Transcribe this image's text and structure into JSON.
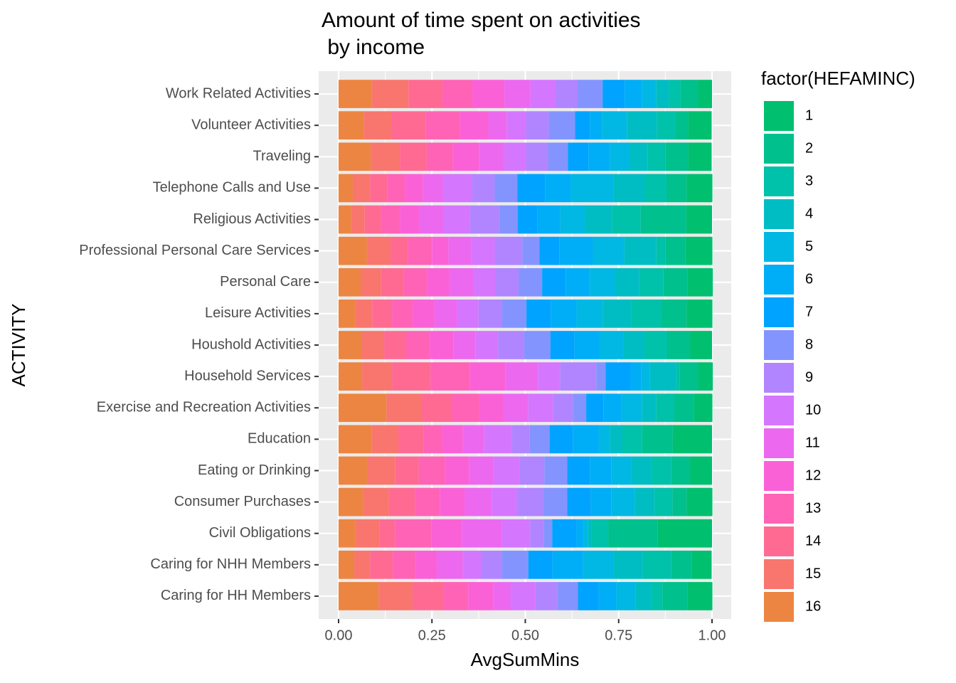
{
  "chart_data": {
    "type": "bar",
    "orientation": "horizontal",
    "stacked": "percent",
    "title": [
      "Amount of time spent on activities",
      " by income"
    ],
    "x_label": "AvgSumMins",
    "y_label": "ACTIVITY",
    "legend_title": "factor(HEFAMINC)",
    "categories": [
      "Work Related Activities",
      "Volunteer Activities",
      "Traveling",
      "Telephone Calls and Use",
      "Religious Activities",
      "Professional Personal Care Services",
      "Personal Care",
      "Leisure Activities",
      "Houshold Activities",
      "Household Services",
      "Exercise and Recreation Activities",
      "Education",
      "Eating or Drinking",
      "Consumer Purchases",
      "Civil Obligations",
      "Caring for NHH Members",
      "Caring for HH Members"
    ],
    "xlim": [
      0,
      1
    ],
    "xticks": [
      {
        "value": 0,
        "label": "0.00"
      },
      {
        "value": 0.25,
        "label": "0.25"
      },
      {
        "value": 0.5,
        "label": "0.50"
      },
      {
        "value": 0.75,
        "label": "0.75"
      },
      {
        "value": 1,
        "label": "1.00"
      }
    ],
    "grid": true,
    "series": [
      {
        "name": "1",
        "color": "#00BF6F",
        "values": [
          0.038,
          0.063,
          0.063,
          0.069,
          0.069,
          0.072,
          0.067,
          0.069,
          0.059,
          0.04,
          0.05,
          0.105,
          0.059,
          0.069,
          0.145,
          0.053,
          0.067
        ]
      },
      {
        "name": "2",
        "color": "#00C08D",
        "values": [
          0.046,
          0.034,
          0.061,
          0.053,
          0.122,
          0.053,
          0.065,
          0.069,
          0.061,
          0.048,
          0.053,
          0.082,
          0.05,
          0.038,
          0.133,
          0.055,
          0.067
        ]
      },
      {
        "name": "3",
        "color": "#00C1AA",
        "values": [
          0.032,
          0.05,
          0.048,
          0.059,
          0.076,
          0.025,
          0.065,
          0.08,
          0.061,
          0.01,
          0.048,
          0.053,
          0.053,
          0.048,
          0.044,
          0.076,
          0.03
        ]
      },
      {
        "name": "4",
        "color": "#00BDC4",
        "values": [
          0.034,
          0.08,
          0.048,
          0.084,
          0.074,
          0.086,
          0.065,
          0.076,
          0.057,
          0.07,
          0.038,
          0.034,
          0.055,
          0.053,
          0.011,
          0.078,
          0.042
        ]
      },
      {
        "name": "5",
        "color": "#00B8E3",
        "values": [
          0.038,
          0.067,
          0.053,
          0.114,
          0.065,
          0.084,
          0.067,
          0.07,
          0.063,
          0.023,
          0.055,
          0.029,
          0.053,
          0.063,
          0.011,
          0.082,
          0.051
        ]
      },
      {
        "name": "6",
        "color": "#00AEF7",
        "values": [
          0.046,
          0.032,
          0.057,
          0.069,
          0.061,
          0.09,
          0.065,
          0.069,
          0.067,
          0.029,
          0.048,
          0.069,
          0.057,
          0.055,
          0.019,
          0.082,
          0.048
        ]
      },
      {
        "name": "7",
        "color": "#00A3FF",
        "values": [
          0.059,
          0.04,
          0.055,
          0.074,
          0.053,
          0.053,
          0.063,
          0.065,
          0.065,
          0.067,
          0.046,
          0.063,
          0.061,
          0.063,
          0.065,
          0.065,
          0.055
        ]
      },
      {
        "name": "8",
        "color": "#8494FF",
        "values": [
          0.067,
          0.07,
          0.053,
          0.061,
          0.05,
          0.046,
          0.063,
          0.065,
          0.07,
          0.025,
          0.036,
          0.053,
          0.061,
          0.065,
          0.023,
          0.07,
          0.055
        ]
      },
      {
        "name": "9",
        "color": "#B185FF",
        "values": [
          0.059,
          0.061,
          0.059,
          0.061,
          0.078,
          0.074,
          0.063,
          0.063,
          0.07,
          0.097,
          0.053,
          0.048,
          0.067,
          0.07,
          0.036,
          0.057,
          0.059
        ]
      },
      {
        "name": "10",
        "color": "#D576FE",
        "values": [
          0.067,
          0.051,
          0.059,
          0.078,
          0.072,
          0.063,
          0.059,
          0.057,
          0.061,
          0.059,
          0.067,
          0.074,
          0.069,
          0.067,
          0.076,
          0.048,
          0.067
        ]
      },
      {
        "name": "11",
        "color": "#EC69EF",
        "values": [
          0.07,
          0.05,
          0.067,
          0.053,
          0.063,
          0.061,
          0.063,
          0.061,
          0.059,
          0.088,
          0.065,
          0.057,
          0.065,
          0.072,
          0.107,
          0.07,
          0.046
        ]
      },
      {
        "name": "12",
        "color": "#FB61D7",
        "values": [
          0.086,
          0.076,
          0.07,
          0.048,
          0.053,
          0.044,
          0.061,
          0.059,
          0.063,
          0.095,
          0.065,
          0.055,
          0.065,
          0.067,
          0.082,
          0.057,
          0.067
        ]
      },
      {
        "name": "13",
        "color": "#FF63B6",
        "values": [
          0.08,
          0.091,
          0.07,
          0.048,
          0.05,
          0.065,
          0.061,
          0.055,
          0.063,
          0.105,
          0.076,
          0.051,
          0.07,
          0.067,
          0.097,
          0.061,
          0.065
        ]
      },
      {
        "name": "14",
        "color": "#FF6A93",
        "values": [
          0.091,
          0.093,
          0.072,
          0.046,
          0.044,
          0.046,
          0.061,
          0.053,
          0.059,
          0.103,
          0.08,
          0.067,
          0.063,
          0.069,
          0.042,
          0.061,
          0.084
        ]
      },
      {
        "name": "15",
        "color": "#F8766D",
        "values": [
          0.099,
          0.074,
          0.078,
          0.046,
          0.036,
          0.063,
          0.055,
          0.046,
          0.061,
          0.08,
          0.093,
          0.072,
          0.074,
          0.07,
          0.065,
          0.042,
          0.091
        ]
      },
      {
        "name": "16",
        "color": "#EC8541",
        "values": [
          0.088,
          0.067,
          0.086,
          0.038,
          0.034,
          0.076,
          0.059,
          0.044,
          0.061,
          0.063,
          0.128,
          0.088,
          0.078,
          0.065,
          0.044,
          0.042,
          0.107
        ]
      }
    ]
  }
}
